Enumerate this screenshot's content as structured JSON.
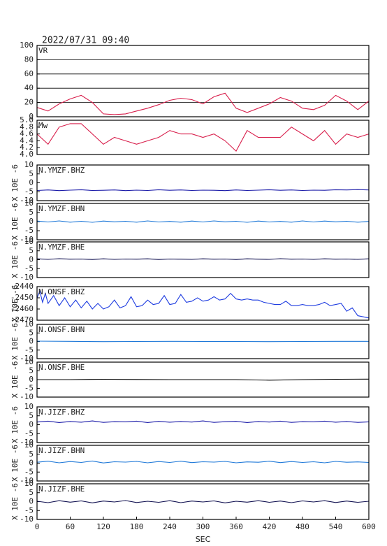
{
  "chart_data": [
    {
      "type": "line",
      "title": "2022/07/31 09:40",
      "label": "VR",
      "ylim": [
        0,
        100
      ],
      "yticks": [
        0,
        20,
        40,
        60,
        80,
        100
      ],
      "grid": true,
      "xlim": [
        0,
        600
      ],
      "x": [
        0,
        20,
        40,
        60,
        80,
        100,
        120,
        140,
        160,
        180,
        200,
        220,
        240,
        260,
        280,
        300,
        320,
        340,
        360,
        380,
        400,
        420,
        440,
        460,
        480,
        500,
        520,
        540,
        560,
        580,
        600
      ],
      "series": [
        {
          "color": "#d81e4b",
          "values": [
            13,
            8,
            18,
            25,
            30,
            20,
            4,
            3,
            4,
            8,
            12,
            17,
            23,
            26,
            24,
            18,
            28,
            33,
            12,
            6,
            12,
            18,
            27,
            22,
            12,
            10,
            16,
            30,
            22,
            10,
            22
          ]
        }
      ]
    },
    {
      "type": "line",
      "label": "Mw",
      "ylim": [
        4.0,
        5.0
      ],
      "yticks": [
        {
          "value": 4,
          "label": "4.0"
        },
        4.2,
        4.4,
        4.6,
        4.8,
        {
          "value": 5,
          "label": "5.0"
        }
      ],
      "xlim": [
        0,
        600
      ],
      "x": [
        0,
        20,
        40,
        60,
        80,
        100,
        120,
        140,
        160,
        180,
        200,
        220,
        240,
        260,
        280,
        300,
        320,
        340,
        360,
        380,
        400,
        420,
        440,
        460,
        480,
        500,
        520,
        540,
        560,
        580,
        600
      ],
      "series": [
        {
          "color": "#d81e4b",
          "values": [
            4.6,
            4.3,
            4.8,
            4.9,
            4.9,
            4.6,
            4.3,
            4.5,
            4.4,
            4.3,
            4.4,
            4.5,
            4.7,
            4.6,
            4.6,
            4.5,
            4.6,
            4.4,
            4.1,
            4.7,
            4.5,
            4.5,
            4.5,
            4.8,
            4.6,
            4.4,
            4.7,
            4.3,
            4.6,
            4.5,
            4.6
          ]
        }
      ]
    },
    {
      "type": "line",
      "label": "N.YMZF.BHZ",
      "ylabel": "X 10E -6",
      "ylim": [
        -10,
        10
      ],
      "yticks": [
        -10,
        -5,
        0,
        5,
        10
      ],
      "xlim": [
        0,
        600
      ],
      "x": [
        0,
        20,
        40,
        60,
        80,
        100,
        120,
        140,
        160,
        180,
        200,
        220,
        240,
        260,
        280,
        300,
        320,
        340,
        360,
        380,
        400,
        420,
        440,
        460,
        480,
        500,
        520,
        540,
        560,
        580,
        600
      ],
      "series": [
        {
          "color": "#1a1aa8",
          "values": [
            -4.3,
            -4.0,
            -4.4,
            -4.1,
            -3.9,
            -4.3,
            -4.2,
            -4.0,
            -4.4,
            -4.1,
            -4.3,
            -3.9,
            -4.2,
            -4.0,
            -4.3,
            -4.1,
            -4.2,
            -4.4,
            -4.0,
            -4.3,
            -4.1,
            -3.9,
            -4.2,
            -4.0,
            -4.3,
            -4.1,
            -4.2,
            -3.9,
            -4.0,
            -3.8,
            -4.0
          ]
        }
      ]
    },
    {
      "type": "line",
      "label": "N.YMZF.BHN",
      "ylabel": "X 10E -6",
      "ylim": [
        -10,
        10
      ],
      "yticks": [
        -10,
        -5,
        0,
        5,
        10
      ],
      "xlim": [
        0,
        600
      ],
      "x": [
        0,
        20,
        40,
        60,
        80,
        100,
        120,
        140,
        160,
        180,
        200,
        220,
        240,
        260,
        280,
        300,
        320,
        340,
        360,
        380,
        400,
        420,
        440,
        460,
        480,
        500,
        520,
        540,
        560,
        580,
        600
      ],
      "series": [
        {
          "color": "#1e78d8",
          "values": [
            0.3,
            -0.2,
            0.4,
            -0.3,
            0.2,
            -0.4,
            0.3,
            -0.1,
            0.2,
            -0.3,
            0.4,
            -0.2,
            0.1,
            -0.3,
            0.3,
            -0.2,
            0.4,
            -0.1,
            0.2,
            -0.4,
            0.3,
            -0.2,
            0.1,
            -0.3,
            0.4,
            -0.2,
            0.3,
            -0.1,
            0.2,
            -0.3,
            0.1
          ]
        }
      ]
    },
    {
      "type": "line",
      "label": "N.YMZF.BHE",
      "ylabel": "X 10E -6",
      "ylim": [
        -10,
        10
      ],
      "yticks": [
        -10,
        -5,
        0,
        5,
        10
      ],
      "xlim": [
        0,
        600
      ],
      "x": [
        0,
        20,
        40,
        60,
        80,
        100,
        120,
        140,
        160,
        180,
        200,
        220,
        240,
        260,
        280,
        300,
        320,
        340,
        360,
        380,
        400,
        420,
        440,
        460,
        480,
        500,
        520,
        540,
        560,
        580,
        600
      ],
      "series": [
        {
          "color": "#101050",
          "values": [
            0.5,
            0.2,
            0.6,
            0.3,
            0.4,
            0.1,
            0.5,
            0.2,
            0.4,
            0.3,
            0.5,
            0.1,
            0.4,
            0.3,
            0.2,
            0.5,
            0.3,
            0.4,
            0.1,
            0.5,
            0.3,
            0.2,
            0.6,
            0.3,
            0.4,
            0.2,
            0.5,
            0.3,
            0.4,
            0.2,
            0.5
          ]
        }
      ]
    },
    {
      "type": "line",
      "label": "N.ONSF.BHZ",
      "ylabel": "X 10E -6",
      "ylim": [
        -2470,
        -2440
      ],
      "yticks": [
        -2470,
        -2460,
        -2450,
        -2440
      ],
      "xlim": [
        0,
        600
      ],
      "x": [
        0,
        5,
        10,
        15,
        20,
        30,
        40,
        50,
        60,
        70,
        80,
        90,
        100,
        110,
        120,
        130,
        140,
        150,
        160,
        170,
        180,
        190,
        200,
        210,
        220,
        230,
        240,
        250,
        260,
        270,
        280,
        290,
        300,
        310,
        320,
        330,
        340,
        350,
        360,
        370,
        380,
        390,
        400,
        410,
        420,
        430,
        440,
        450,
        460,
        470,
        480,
        490,
        500,
        510,
        520,
        530,
        540,
        550,
        560,
        570,
        580,
        590,
        600
      ],
      "series": [
        {
          "color": "#1e3ce0",
          "values": [
            -2450,
            -2444,
            -2454,
            -2446,
            -2455,
            -2448,
            -2457,
            -2450,
            -2458,
            -2452,
            -2459,
            -2453,
            -2460,
            -2455,
            -2460,
            -2458,
            -2452,
            -2459,
            -2457,
            -2449,
            -2458,
            -2457,
            -2452,
            -2456,
            -2455,
            -2448,
            -2456,
            -2455,
            -2447,
            -2454,
            -2453,
            -2450,
            -2453,
            -2452,
            -2449,
            -2452,
            -2451,
            -2446,
            -2451,
            -2452,
            -2451,
            -2452,
            -2452,
            -2454,
            -2455,
            -2456,
            -2456,
            -2453,
            -2457,
            -2457,
            -2456,
            -2457,
            -2457,
            -2456,
            -2454,
            -2457,
            -2456,
            -2455,
            -2462,
            -2459,
            -2466,
            -2467,
            -2468
          ]
        }
      ]
    },
    {
      "type": "line",
      "label": "N.ONSF.BHN",
      "ylabel": "X 10E -6",
      "ylim": [
        -10,
        10
      ],
      "yticks": [
        -10,
        -5,
        0,
        5,
        10
      ],
      "xlim": [
        0,
        600
      ],
      "x": [
        0,
        60,
        120,
        180,
        240,
        300,
        360,
        420,
        480,
        540,
        600
      ],
      "series": [
        {
          "color": "#1e78d8",
          "values": [
            0.2,
            0.1,
            -0.1,
            0,
            0.1,
            0,
            0,
            -0.1,
            0,
            0.1,
            0.1
          ]
        }
      ]
    },
    {
      "type": "line",
      "label": "N.ONSF.BHE",
      "ylabel": "X 10E -6",
      "ylim": [
        -10,
        10
      ],
      "yticks": [
        -10,
        -5,
        0,
        5,
        10
      ],
      "xlim": [
        0,
        600
      ],
      "x": [
        0,
        60,
        120,
        180,
        240,
        300,
        360,
        420,
        480,
        540,
        600
      ],
      "series": [
        {
          "color": "#000000",
          "values": [
            0,
            0,
            0.2,
            0.1,
            0,
            0,
            0,
            -0.3,
            0,
            0.2,
            0.3
          ]
        }
      ]
    },
    {
      "type": "line",
      "label": "N.JIZF.BHZ",
      "ylabel": "X 10E -6",
      "ylim": [
        -10,
        10
      ],
      "yticks": [
        -10,
        -5,
        0,
        5,
        10
      ],
      "xlim": [
        0,
        600
      ],
      "x": [
        0,
        20,
        40,
        60,
        80,
        100,
        120,
        140,
        160,
        180,
        200,
        220,
        240,
        260,
        280,
        300,
        320,
        340,
        360,
        380,
        400,
        420,
        440,
        460,
        480,
        500,
        520,
        540,
        560,
        580,
        600
      ],
      "series": [
        {
          "color": "#1a1aa8",
          "values": [
            1.5,
            2.0,
            1.2,
            1.8,
            1.4,
            2.1,
            1.3,
            1.7,
            1.6,
            2.0,
            1.2,
            1.9,
            1.4,
            1.8,
            1.5,
            2.1,
            1.3,
            1.7,
            1.9,
            1.2,
            1.8,
            1.5,
            2.0,
            1.3,
            1.7,
            1.6,
            2.0,
            1.4,
            1.8,
            1.3,
            1.6
          ]
        }
      ]
    },
    {
      "type": "line",
      "label": "N.JIZF.BHN",
      "ylabel": "X 10E -6",
      "ylim": [
        -10,
        10
      ],
      "yticks": [
        -10,
        -5,
        0,
        5,
        10
      ],
      "xlim": [
        0,
        600
      ],
      "x": [
        0,
        20,
        40,
        60,
        80,
        100,
        120,
        140,
        160,
        180,
        200,
        220,
        240,
        260,
        280,
        300,
        320,
        340,
        360,
        380,
        400,
        420,
        440,
        460,
        480,
        500,
        520,
        540,
        560,
        580,
        600
      ],
      "series": [
        {
          "color": "#1e78d8",
          "values": [
            0.5,
            1.1,
            0.2,
            0.9,
            0.4,
            1.2,
            0.1,
            0.8,
            0.6,
            1.0,
            0.2,
            0.9,
            0.4,
            1.1,
            0.3,
            0.8,
            0.6,
            1.0,
            0.2,
            0.7,
            0.5,
            1.1,
            0.3,
            0.9,
            0.4,
            0.8,
            0.2,
            1.0,
            0.5,
            0.7,
            0.4
          ]
        }
      ]
    },
    {
      "type": "line",
      "label": "N.JIZF.BHE",
      "ylabel": "X 10E -6",
      "ylim": [
        -10,
        10
      ],
      "yticks": [
        -10,
        -5,
        0,
        5,
        10
      ],
      "xlim": [
        0,
        600
      ],
      "xticks": [
        0,
        60,
        120,
        180,
        240,
        300,
        360,
        420,
        480,
        540,
        600
      ],
      "xlabel": "SEC",
      "x": [
        0,
        20,
        40,
        60,
        80,
        100,
        120,
        140,
        160,
        180,
        200,
        220,
        240,
        260,
        280,
        300,
        320,
        340,
        360,
        380,
        400,
        420,
        440,
        460,
        480,
        500,
        520,
        540,
        560,
        580,
        600
      ],
      "series": [
        {
          "color": "#101050",
          "values": [
            0.2,
            -0.6,
            0.5,
            -0.3,
            0.4,
            -0.7,
            0.3,
            -0.2,
            0.6,
            -0.5,
            0.2,
            -0.4,
            0.5,
            -0.6,
            0.3,
            -0.2,
            0.4,
            -0.7,
            0.2,
            -0.3,
            0.5,
            -0.4,
            0.3,
            -0.6,
            0.4,
            -0.2,
            0.5,
            -0.5,
            0.3,
            -0.4,
            0.2
          ]
        }
      ]
    }
  ]
}
